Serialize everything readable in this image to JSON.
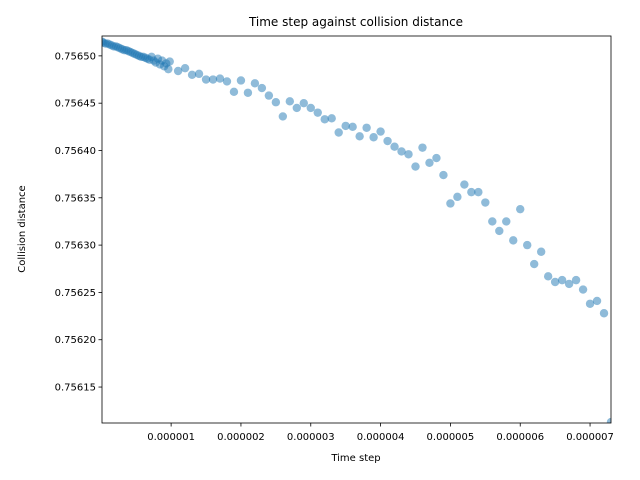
{
  "chart_data": {
    "type": "scatter",
    "title": "Time step against collision distance",
    "xlabel": "Time step",
    "ylabel": "Collision distance",
    "xlim": [
      1e-08,
      7.3e-06
    ],
    "ylim": [
      0.756112,
      0.756521
    ],
    "x_ticks": [
      1e-06,
      2e-06,
      3e-06,
      4e-06,
      5e-06,
      6e-06,
      7e-06
    ],
    "x_tick_labels": [
      "0.000001",
      "0.000002",
      "0.000003",
      "0.000004",
      "0.000005",
      "0.000006",
      "0.000007"
    ],
    "y_ticks": [
      0.75615,
      0.7562,
      0.75625,
      0.7563,
      0.75635,
      0.7564,
      0.75645,
      0.7565
    ],
    "y_tick_labels": [
      "0.75615",
      "0.75620",
      "0.75625",
      "0.75630",
      "0.75635",
      "0.75640",
      "0.75645",
      "0.75650"
    ],
    "grid": false,
    "marker_color": "#1f77b4",
    "points": [
      [
        1e-08,
        0.756515
      ],
      [
        3e-08,
        0.756514
      ],
      [
        6e-08,
        0.756513
      ],
      [
        9e-08,
        0.756513
      ],
      [
        1.2e-07,
        0.756512
      ],
      [
        1.5e-07,
        0.756511
      ],
      [
        1.8e-07,
        0.75651
      ],
      [
        2.1e-07,
        0.75651
      ],
      [
        2.4e-07,
        0.756509
      ],
      [
        2.7e-07,
        0.756508
      ],
      [
        3e-07,
        0.756507
      ],
      [
        3.3e-07,
        0.756506
      ],
      [
        3.6e-07,
        0.756506
      ],
      [
        3.9e-07,
        0.756505
      ],
      [
        4.2e-07,
        0.756504
      ],
      [
        4.5e-07,
        0.756503
      ],
      [
        4.8e-07,
        0.756502
      ],
      [
        5.1e-07,
        0.756501
      ],
      [
        5.4e-07,
        0.7565
      ],
      [
        5.7e-07,
        0.756499
      ],
      [
        6e-07,
        0.756499
      ],
      [
        6.3e-07,
        0.756498
      ],
      [
        6.6e-07,
        0.756497
      ],
      [
        6.9e-07,
        0.756496
      ],
      [
        7.2e-07,
        0.756499
      ],
      [
        7.5e-07,
        0.756495
      ],
      [
        7.8e-07,
        0.756493
      ],
      [
        8.1e-07,
        0.756497
      ],
      [
        8.4e-07,
        0.756491
      ],
      [
        8.7e-07,
        0.756495
      ],
      [
        9e-07,
        0.756489
      ],
      [
        9.3e-07,
        0.756492
      ],
      [
        9.6e-07,
        0.756486
      ],
      [
        9.8e-07,
        0.756494
      ],
      [
        1.1e-06,
        0.756484
      ],
      [
        1.2e-06,
        0.756487
      ],
      [
        1.3e-06,
        0.75648
      ],
      [
        1.4e-06,
        0.756481
      ],
      [
        1.5e-06,
        0.756475
      ],
      [
        1.6e-06,
        0.756475
      ],
      [
        1.7e-06,
        0.756476
      ],
      [
        1.8e-06,
        0.756473
      ],
      [
        1.9e-06,
        0.756462
      ],
      [
        2e-06,
        0.756474
      ],
      [
        2.1e-06,
        0.756461
      ],
      [
        2.2e-06,
        0.756471
      ],
      [
        2.3e-06,
        0.756466
      ],
      [
        2.4e-06,
        0.756458
      ],
      [
        2.5e-06,
        0.756451
      ],
      [
        2.6e-06,
        0.756436
      ],
      [
        2.7e-06,
        0.756452
      ],
      [
        2.8e-06,
        0.756445
      ],
      [
        2.9e-06,
        0.75645
      ],
      [
        3e-06,
        0.756445
      ],
      [
        3.1e-06,
        0.75644
      ],
      [
        3.2e-06,
        0.756433
      ],
      [
        3.3e-06,
        0.756434
      ],
      [
        3.4e-06,
        0.756419
      ],
      [
        3.5e-06,
        0.756426
      ],
      [
        3.6e-06,
        0.756425
      ],
      [
        3.7e-06,
        0.756415
      ],
      [
        3.8e-06,
        0.756424
      ],
      [
        3.9e-06,
        0.756414
      ],
      [
        4e-06,
        0.75642
      ],
      [
        4.1e-06,
        0.75641
      ],
      [
        4.2e-06,
        0.756404
      ],
      [
        4.3e-06,
        0.756399
      ],
      [
        4.4e-06,
        0.756396
      ],
      [
        4.5e-06,
        0.756383
      ],
      [
        4.6e-06,
        0.756403
      ],
      [
        4.7e-06,
        0.756387
      ],
      [
        4.8e-06,
        0.756392
      ],
      [
        4.9e-06,
        0.756374
      ],
      [
        5e-06,
        0.756344
      ],
      [
        5.1e-06,
        0.756351
      ],
      [
        5.2e-06,
        0.756364
      ],
      [
        5.3e-06,
        0.756356
      ],
      [
        5.4e-06,
        0.756356
      ],
      [
        5.5e-06,
        0.756345
      ],
      [
        5.6e-06,
        0.756325
      ],
      [
        5.7e-06,
        0.756315
      ],
      [
        5.8e-06,
        0.756325
      ],
      [
        5.9e-06,
        0.756305
      ],
      [
        6e-06,
        0.756338
      ],
      [
        6.1e-06,
        0.7563
      ],
      [
        6.2e-06,
        0.75628
      ],
      [
        6.3e-06,
        0.756293
      ],
      [
        6.4e-06,
        0.756267
      ],
      [
        6.5e-06,
        0.756261
      ],
      [
        6.6e-06,
        0.756263
      ],
      [
        6.7e-06,
        0.756259
      ],
      [
        6.8e-06,
        0.756263
      ],
      [
        6.9e-06,
        0.756253
      ],
      [
        7e-06,
        0.756238
      ],
      [
        7.1e-06,
        0.756241
      ],
      [
        7.2e-06,
        0.756228
      ],
      [
        7.3e-06,
        0.756113
      ]
    ]
  }
}
